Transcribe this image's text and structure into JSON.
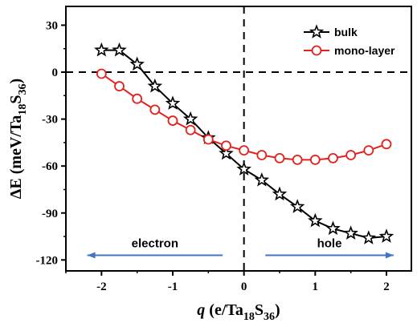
{
  "chart_data": {
    "type": "line",
    "xlabel": {
      "symbol": "q",
      "unit_pre": " (e/Ta",
      "sub1": "18",
      "mid": "S",
      "sub2": "36",
      "post": ")"
    },
    "ylabel": {
      "symbol": "ΔE",
      "unit_pre": " (meV/Ta",
      "sub1": "18",
      "mid": "S",
      "sub2": "36",
      "post": ")"
    },
    "xlim": [
      -2.5,
      2.35
    ],
    "ylim": [
      -127,
      42
    ],
    "xticks": [
      -2,
      -1,
      0,
      1,
      2
    ],
    "xtick_labels": [
      "-2",
      "-1",
      "0",
      "1",
      "2"
    ],
    "yticks": [
      30,
      0,
      -30,
      -60,
      -90,
      -120
    ],
    "ytick_labels": [
      "30",
      "0",
      "-30",
      "-60",
      "-90",
      "-120"
    ],
    "grid": false,
    "legend_position": "top-right",
    "reference_lines": {
      "y": 0,
      "x": 0,
      "style": "dashed"
    },
    "series": [
      {
        "name": "bulk",
        "color": "#000000",
        "marker": "star",
        "x": [
          -2,
          -1.75,
          -1.5,
          -1.25,
          -1,
          -0.75,
          -0.5,
          -0.25,
          0,
          0.25,
          0.5,
          0.75,
          1,
          1.25,
          1.5,
          1.75,
          2
        ],
        "y": [
          14,
          14,
          5,
          -9,
          -20,
          -30,
          -42,
          -52,
          -62,
          -69,
          -78,
          -86,
          -95,
          -100,
          -103,
          -106,
          -105
        ]
      },
      {
        "name": "mono-layer",
        "color": "#e3211c",
        "marker": "circle",
        "x": [
          -2,
          -1.75,
          -1.5,
          -1.25,
          -1,
          -0.75,
          -0.5,
          -0.25,
          0,
          0.25,
          0.5,
          0.75,
          1,
          1.25,
          1.5,
          1.75,
          2
        ],
        "y": [
          -1,
          -9,
          -17,
          -24,
          -31,
          -37,
          -43,
          -47,
          -50,
          -53,
          -55,
          -56,
          -56,
          -55,
          -53,
          -50,
          -46
        ]
      }
    ],
    "annotations": [
      {
        "text": "electron",
        "arrow_from": -0.3,
        "arrow_to": -2.2,
        "direction": "left",
        "color": "#4472c4"
      },
      {
        "text": "hole",
        "arrow_from": 0.3,
        "arrow_to": 2.1,
        "direction": "right",
        "color": "#4472c4"
      }
    ]
  }
}
